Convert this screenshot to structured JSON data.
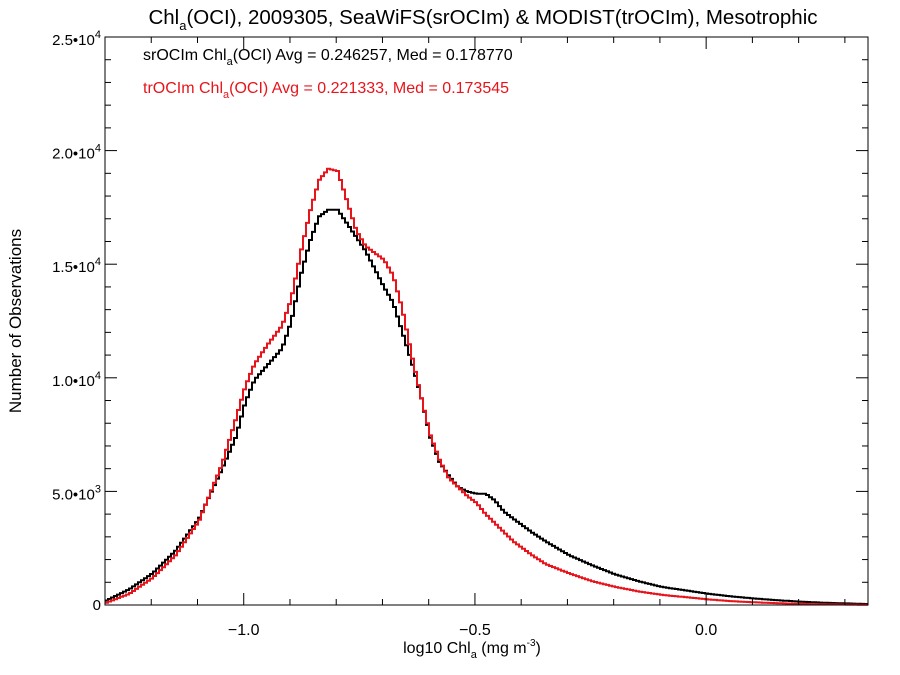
{
  "chart_data": {
    "type": "line",
    "step": true,
    "title": {
      "pre": "Chl",
      "sub": "a",
      "post": "(OCI), 2009305, SeaWiFS(srOCIm) & MODIST(trOCIm), Mesotrophic"
    },
    "xlabel": {
      "pre": "log10 Chl",
      "sub": "a",
      "post": " (mg m",
      "sup": "-3",
      "end": ")"
    },
    "ylabel": "Number of Observations",
    "xlim": [
      -1.3,
      0.35
    ],
    "ylim": [
      0,
      25000
    ],
    "grid": false,
    "x_ticks": [
      {
        "value": -1.0,
        "label": "−1.0"
      },
      {
        "value": -0.5,
        "label": "−0.5"
      },
      {
        "value": 0.0,
        "label": "0.0"
      }
    ],
    "y_ticks": [
      {
        "value": 0,
        "mant": "0",
        "exp": ""
      },
      {
        "value": 5000,
        "mant": "5.0•10",
        "exp": "3"
      },
      {
        "value": 10000,
        "mant": "1.0•10",
        "exp": "4"
      },
      {
        "value": 15000,
        "mant": "1.5•10",
        "exp": "4"
      },
      {
        "value": 20000,
        "mant": "2.0•10",
        "exp": "4"
      },
      {
        "value": 25000,
        "mant": "2.5•10",
        "exp": "4"
      }
    ],
    "annotations": [
      {
        "pre": "srOCIm Chl",
        "sub": "a",
        "post": "(OCI) Avg = 0.246257, Med = 0.178770",
        "color": "#000000"
      },
      {
        "pre": "trOCIm Chl",
        "sub": "a",
        "post": "(OCI) Avg = 0.221333, Med = 0.173545",
        "color": "#e8141b"
      }
    ],
    "series": [
      {
        "color": "#000000",
        "x": [
          -1.3,
          -1.25,
          -1.2,
          -1.15,
          -1.1,
          -1.05,
          -1.02,
          -1.0,
          -0.98,
          -0.95,
          -0.92,
          -0.9,
          -0.88,
          -0.86,
          -0.84,
          -0.82,
          -0.8,
          -0.78,
          -0.76,
          -0.74,
          -0.72,
          -0.7,
          -0.68,
          -0.66,
          -0.64,
          -0.62,
          -0.6,
          -0.58,
          -0.56,
          -0.54,
          -0.52,
          -0.5,
          -0.48,
          -0.46,
          -0.44,
          -0.42,
          -0.4,
          -0.38,
          -0.35,
          -0.3,
          -0.25,
          -0.2,
          -0.15,
          -0.1,
          -0.05,
          0.0,
          0.05,
          0.1,
          0.15,
          0.2,
          0.25,
          0.3,
          0.35
        ],
        "values": [
          200,
          700,
          1400,
          2400,
          3800,
          6000,
          7400,
          8900,
          9900,
          10600,
          11300,
          12500,
          14500,
          16000,
          17100,
          17400,
          17400,
          16800,
          16200,
          15600,
          14800,
          14000,
          13300,
          12000,
          10700,
          9200,
          7400,
          6300,
          5700,
          5200,
          5000,
          4900,
          4900,
          4600,
          4100,
          3800,
          3500,
          3200,
          2800,
          2200,
          1750,
          1350,
          1050,
          800,
          650,
          500,
          380,
          290,
          210,
          150,
          100,
          70,
          40
        ]
      },
      {
        "color": "#e8141b",
        "x": [
          -1.3,
          -1.25,
          -1.2,
          -1.15,
          -1.1,
          -1.05,
          -1.02,
          -1.0,
          -0.98,
          -0.95,
          -0.92,
          -0.9,
          -0.88,
          -0.86,
          -0.84,
          -0.82,
          -0.8,
          -0.78,
          -0.76,
          -0.74,
          -0.72,
          -0.7,
          -0.68,
          -0.66,
          -0.64,
          -0.62,
          -0.6,
          -0.58,
          -0.56,
          -0.54,
          -0.52,
          -0.5,
          -0.48,
          -0.46,
          -0.44,
          -0.42,
          -0.4,
          -0.38,
          -0.35,
          -0.3,
          -0.25,
          -0.2,
          -0.15,
          -0.1,
          -0.05,
          0.0,
          0.05,
          0.1,
          0.15,
          0.2,
          0.25,
          0.3,
          0.35
        ],
        "values": [
          100,
          500,
          1200,
          2200,
          3700,
          6200,
          8200,
          9600,
          10600,
          11500,
          12300,
          13500,
          15500,
          17300,
          18700,
          19200,
          19100,
          17800,
          16500,
          15800,
          15500,
          15200,
          14500,
          13000,
          11000,
          9200,
          7500,
          6400,
          5600,
          5200,
          4800,
          4500,
          4000,
          3600,
          3200,
          2800,
          2500,
          2200,
          1800,
          1400,
          1050,
          800,
          600,
          450,
          350,
          250,
          170,
          120,
          80,
          50,
          30,
          20,
          10
        ]
      }
    ]
  }
}
